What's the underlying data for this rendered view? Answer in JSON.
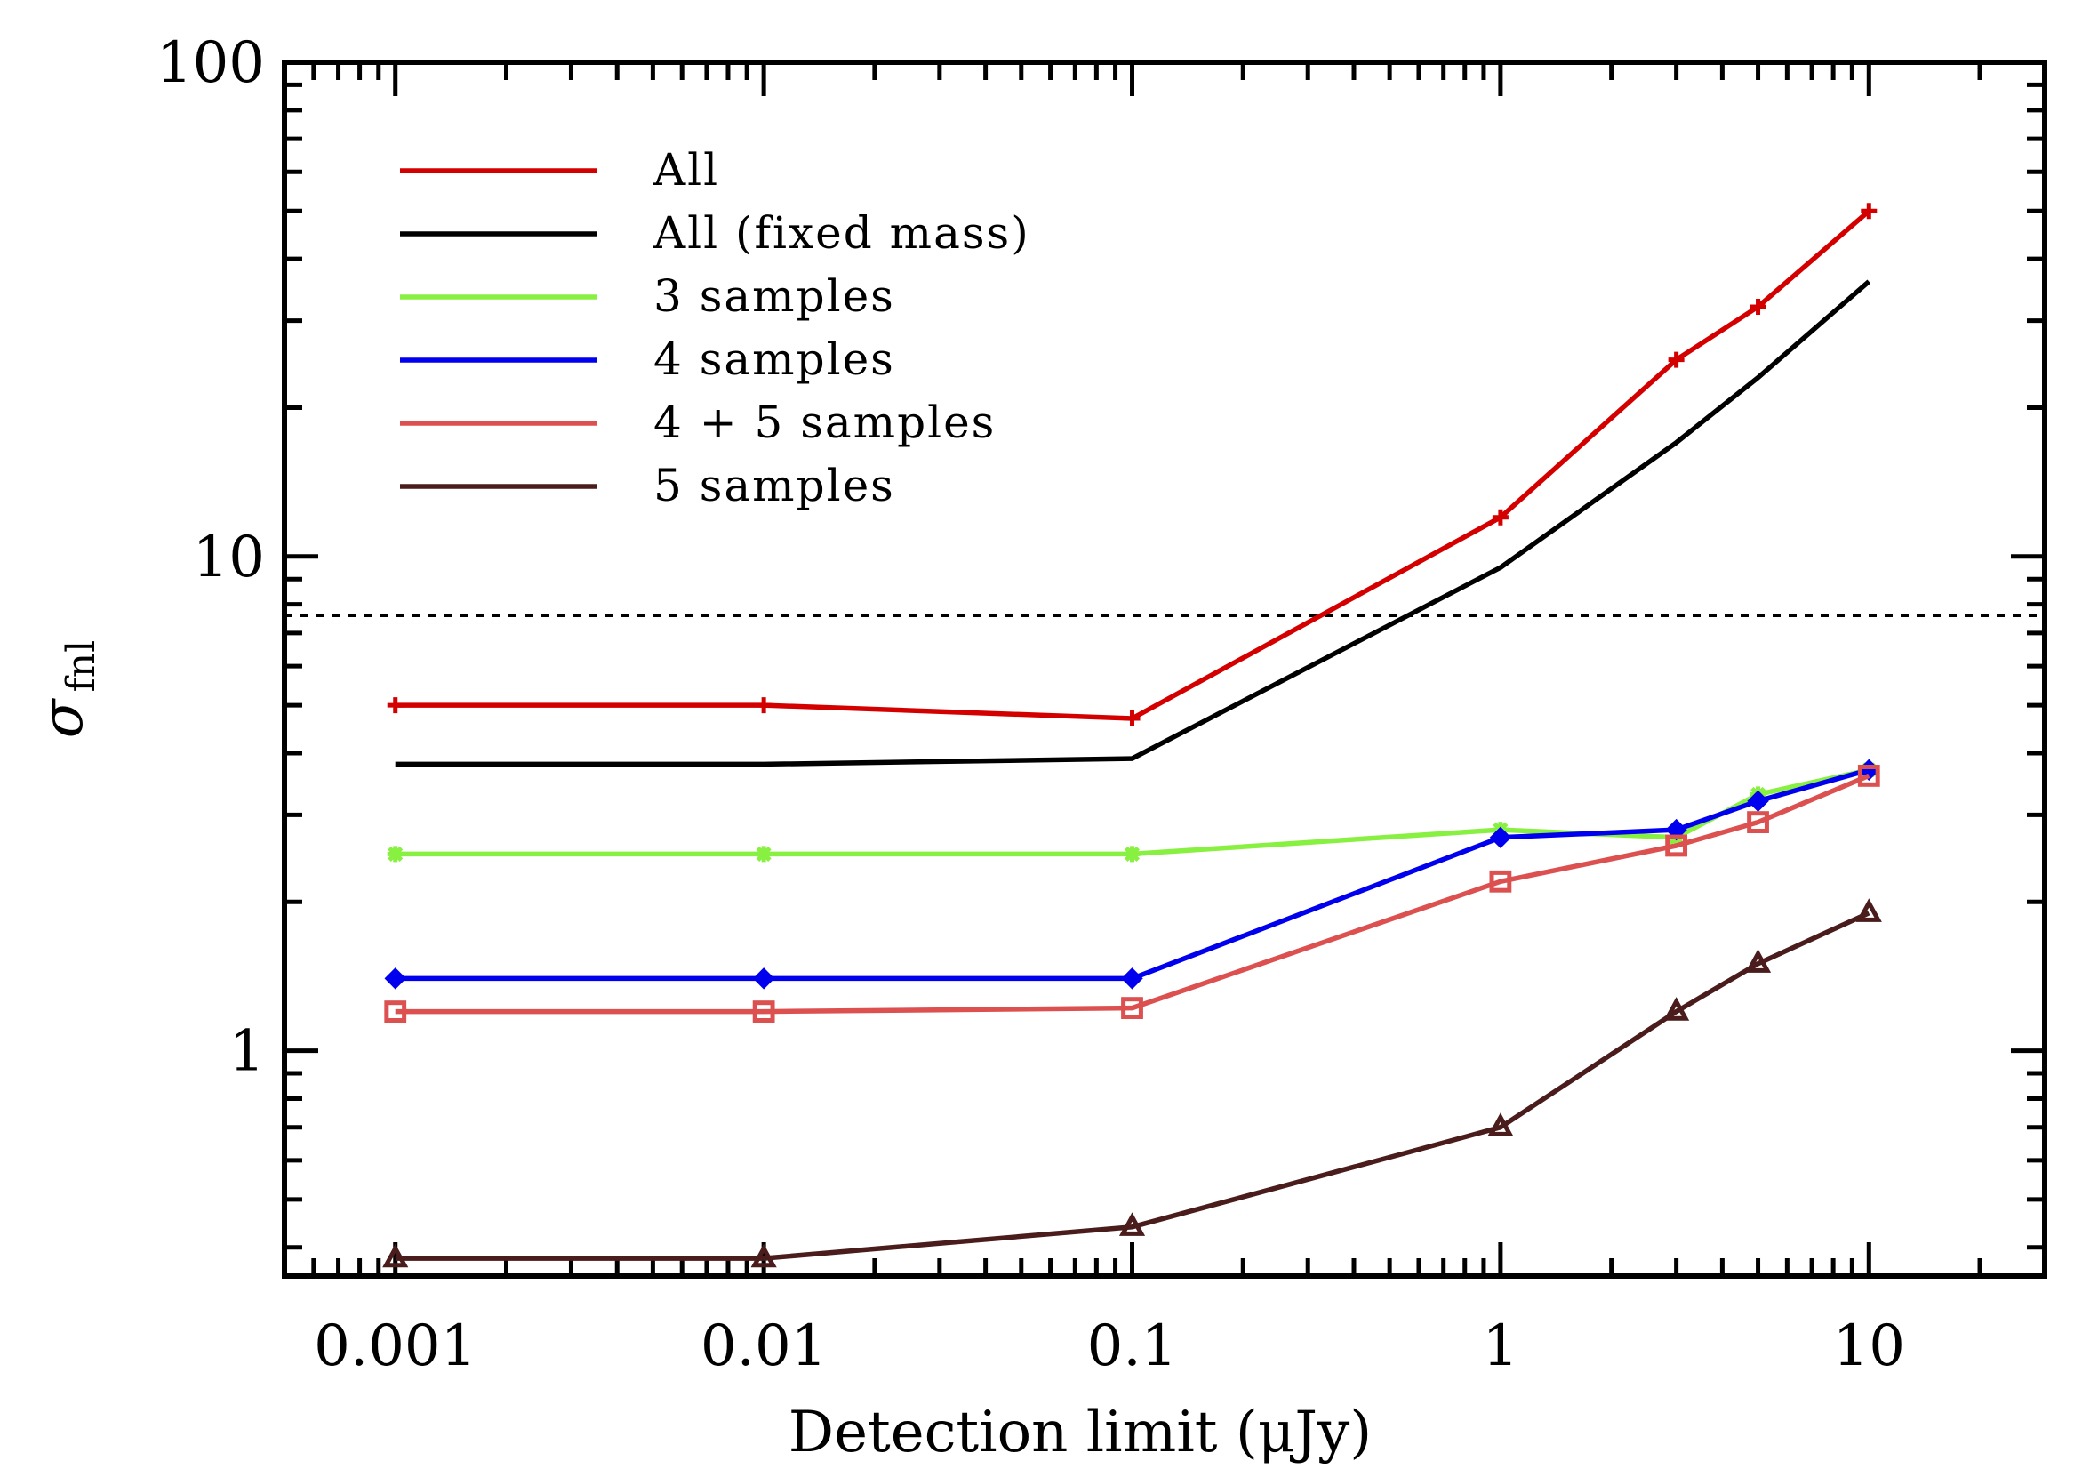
{
  "chart_data": {
    "type": "line",
    "title": "",
    "xlabel": "Detection limit (μJy)",
    "ylabel_symbol": "σ",
    "ylabel_subscript": "fnl",
    "xscale": "log",
    "yscale": "log",
    "xlim": [
      0.0005,
      30
    ],
    "ylim": [
      0.35,
      100
    ],
    "x_tick_labels": [
      {
        "value": 0.001,
        "label": "0.001"
      },
      {
        "value": 0.01,
        "label": "0.01"
      },
      {
        "value": 0.1,
        "label": "0.1"
      },
      {
        "value": 1,
        "label": "1"
      },
      {
        "value": 10,
        "label": "10"
      }
    ],
    "y_tick_labels": [
      {
        "value": 1,
        "label": "1"
      },
      {
        "value": 10,
        "label": "10"
      },
      {
        "value": 100,
        "label": "100"
      }
    ],
    "reference_line": {
      "y": 7.6,
      "style": "dotted",
      "color": "#000000"
    },
    "legend_position": "top-left",
    "series": [
      {
        "name": "All",
        "color": "#d40000",
        "marker": "plus",
        "x": [
          0.001,
          0.01,
          0.1,
          1,
          3,
          5,
          10
        ],
        "y": [
          5.0,
          5.0,
          4.7,
          12.0,
          25.0,
          32.0,
          50.0
        ]
      },
      {
        "name": "All (fixed mass)",
        "color": "#000000",
        "marker": "none",
        "x": [
          0.001,
          0.01,
          0.1,
          1,
          3,
          5,
          10
        ],
        "y": [
          3.8,
          3.8,
          3.9,
          9.5,
          17.0,
          23.0,
          36.0
        ]
      },
      {
        "name": "3 samples",
        "color": "#88f040",
        "marker": "asterisk",
        "x": [
          0.001,
          0.01,
          0.1,
          1,
          3,
          5,
          10
        ],
        "y": [
          2.5,
          2.5,
          2.5,
          2.8,
          2.7,
          3.3,
          3.7
        ]
      },
      {
        "name": "4 samples",
        "color": "#0000ee",
        "marker": "diamond",
        "x": [
          0.001,
          0.01,
          0.1,
          1,
          3,
          5,
          10
        ],
        "y": [
          1.4,
          1.4,
          1.4,
          2.7,
          2.8,
          3.2,
          3.7
        ]
      },
      {
        "name": "4 + 5 samples",
        "color": "#dc5050",
        "marker": "square",
        "x": [
          0.001,
          0.01,
          0.1,
          1,
          3,
          5,
          10
        ],
        "y": [
          1.2,
          1.2,
          1.22,
          2.2,
          2.6,
          2.9,
          3.6
        ]
      },
      {
        "name": "5 samples",
        "color": "#4a1c1c",
        "marker": "triangle",
        "x": [
          0.001,
          0.01,
          0.1,
          1,
          3,
          5,
          10
        ],
        "y": [
          0.38,
          0.38,
          0.44,
          0.7,
          1.2,
          1.5,
          1.9
        ]
      }
    ]
  }
}
